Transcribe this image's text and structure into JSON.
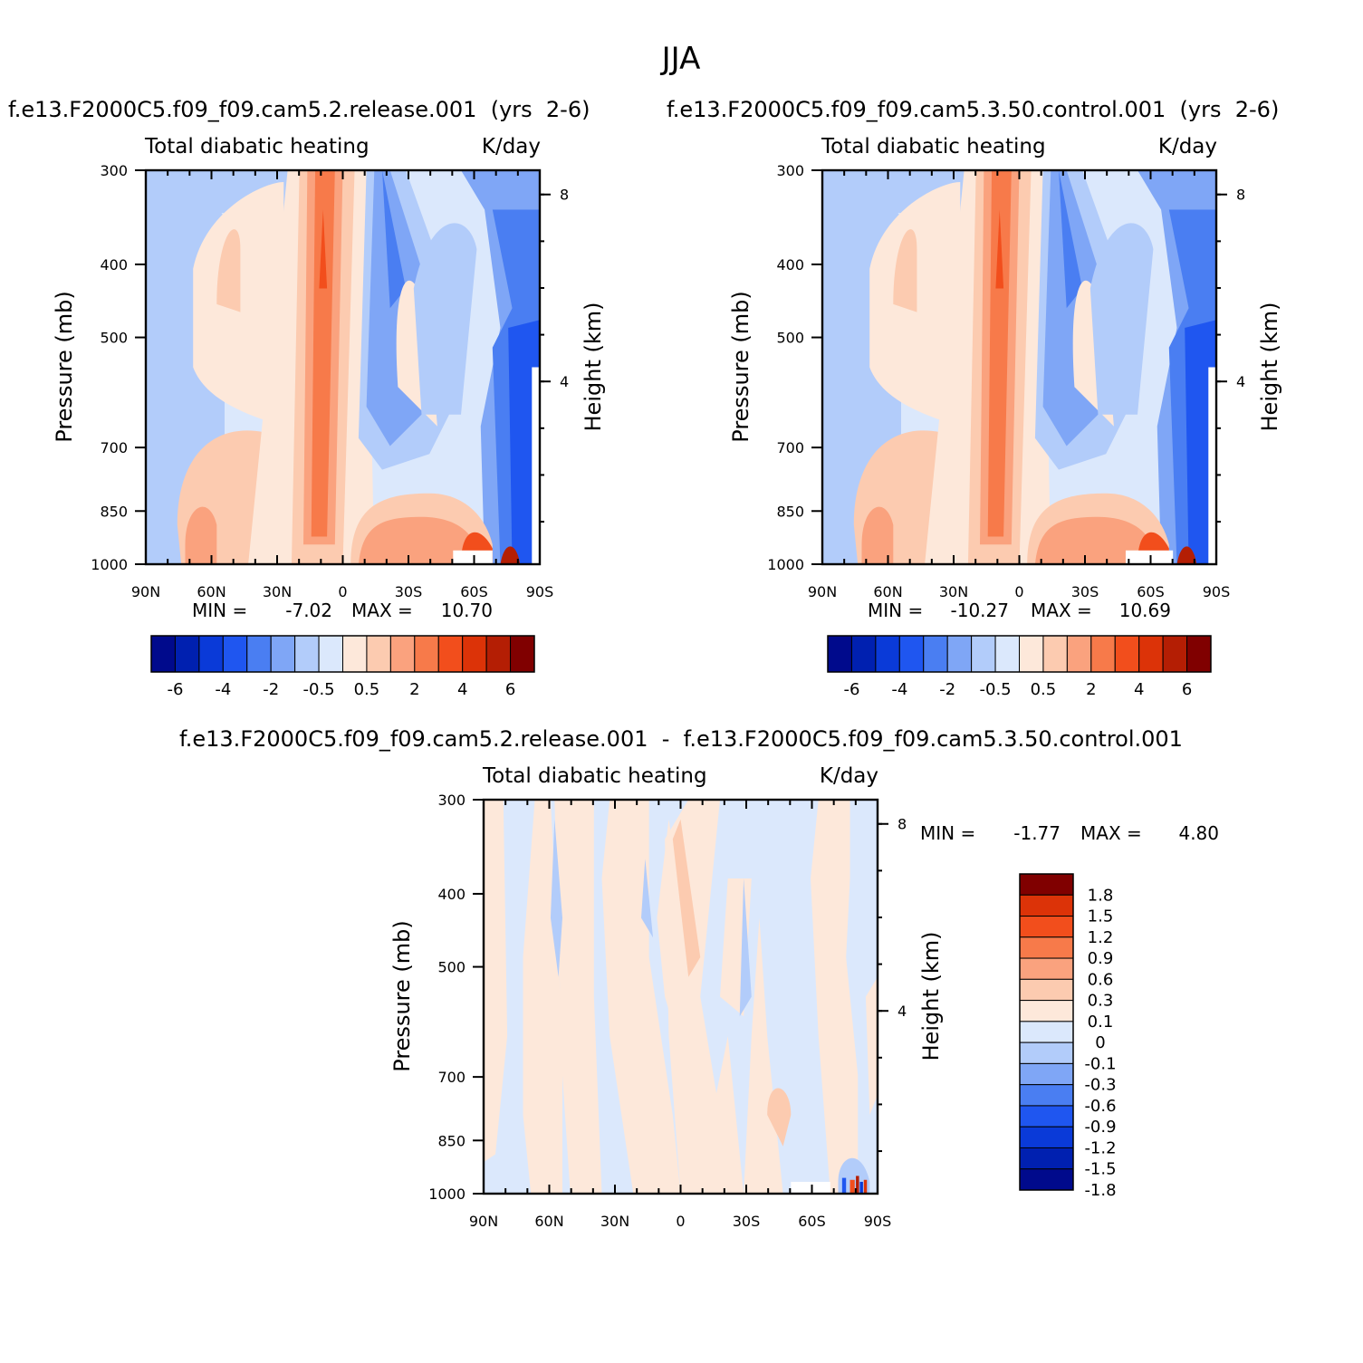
{
  "figure": {
    "title": "JJA",
    "colors": {
      "abs_scale": [
        "#000a8c",
        "#0020b0",
        "#0a3ad8",
        "#1f56f0",
        "#4a7ef2",
        "#7fa6f6",
        "#b2ccfa",
        "#dbe8fc",
        "#fde8da",
        "#fccbb0",
        "#faa27e",
        "#f77a4a",
        "#f24e1c",
        "#dc3308",
        "#b41e04",
        "#800000"
      ],
      "diff_scale": [
        "#000a8c",
        "#0020b0",
        "#0a3ad8",
        "#1f56f0",
        "#4a7ef2",
        "#7fa6f6",
        "#b2ccfa",
        "#dbe8fc",
        "#fde8da",
        "#fccbb0",
        "#faa27e",
        "#f77a4a",
        "#f24e1c",
        "#dc3308",
        "#800000"
      ]
    }
  },
  "chart_data": [
    {
      "type": "heatmap",
      "panel": "top-left",
      "title": "f.e13.F2000C5.f09_f09.cam5.2.release.001  (yrs  2-6)",
      "variable": "Total diabatic heating",
      "units": "K/day",
      "ylabel": "Pressure (mb)",
      "y2label": "Height (km)",
      "xticks": [
        "90N",
        "60N",
        "30N",
        "0",
        "30S",
        "60S",
        "90S"
      ],
      "yticks": [
        "300",
        "400",
        "500",
        "700",
        "850",
        "1000"
      ],
      "y2ticks": [
        "8",
        "4"
      ],
      "min_label": "MIN =",
      "min_value": "-7.02",
      "max_label": "MAX =",
      "max_value": "10.70",
      "min": -7.02,
      "max": 10.7,
      "colorbar_labels": [
        "-6",
        "-4",
        "-2",
        "-0.5",
        "0.5",
        "2",
        "4",
        "6"
      ],
      "colorbar_levels": [
        -6,
        -5,
        -4,
        -3,
        -2,
        -1,
        -0.5,
        0,
        0.5,
        1,
        2,
        3,
        4,
        5,
        6
      ]
    },
    {
      "type": "heatmap",
      "panel": "top-right",
      "title": "f.e13.F2000C5.f09_f09.cam5.3.50.control.001  (yrs  2-6)",
      "variable": "Total diabatic heating",
      "units": "K/day",
      "ylabel": "Pressure (mb)",
      "y2label": "Height (km)",
      "xticks": [
        "90N",
        "60N",
        "30N",
        "0",
        "30S",
        "60S",
        "90S"
      ],
      "yticks": [
        "300",
        "400",
        "500",
        "700",
        "850",
        "1000"
      ],
      "y2ticks": [
        "8",
        "4"
      ],
      "min_label": "MIN =",
      "min_value": "-10.27",
      "max_label": "MAX =",
      "max_value": "10.69",
      "min": -10.27,
      "max": 10.69,
      "colorbar_labels": [
        "-6",
        "-4",
        "-2",
        "-0.5",
        "0.5",
        "2",
        "4",
        "6"
      ],
      "colorbar_levels": [
        -6,
        -5,
        -4,
        -3,
        -2,
        -1,
        -0.5,
        0,
        0.5,
        1,
        2,
        3,
        4,
        5,
        6
      ]
    },
    {
      "type": "heatmap",
      "panel": "bottom",
      "title": "f.e13.F2000C5.f09_f09.cam5.2.release.001  -  f.e13.F2000C5.f09_f09.cam5.3.50.control.001",
      "variable": "Total diabatic heating",
      "units": "K/day",
      "ylabel": "Pressure (mb)",
      "y2label": "Height (km)",
      "xticks": [
        "90N",
        "60N",
        "30N",
        "0",
        "30S",
        "60S",
        "90S"
      ],
      "yticks": [
        "300",
        "400",
        "500",
        "700",
        "850",
        "1000"
      ],
      "y2ticks": [
        "8",
        "4"
      ],
      "min_label": "MIN =",
      "min_value": "-1.77",
      "max_label": "MAX =",
      "max_value": "4.80",
      "min": -1.77,
      "max": 4.8,
      "colorbar_labels": [
        "1.8",
        "1.5",
        "1.2",
        "0.9",
        "0.6",
        "0.3",
        "0.1",
        "0",
        "-0.1",
        "-0.3",
        "-0.6",
        "-0.9",
        "-1.2",
        "-1.5",
        "-1.8"
      ],
      "colorbar_levels": [
        1.8,
        1.5,
        1.2,
        0.9,
        0.6,
        0.3,
        0.1,
        0,
        -0.1,
        -0.3,
        -0.6,
        -0.9,
        -1.2,
        -1.5,
        -1.8
      ]
    }
  ]
}
